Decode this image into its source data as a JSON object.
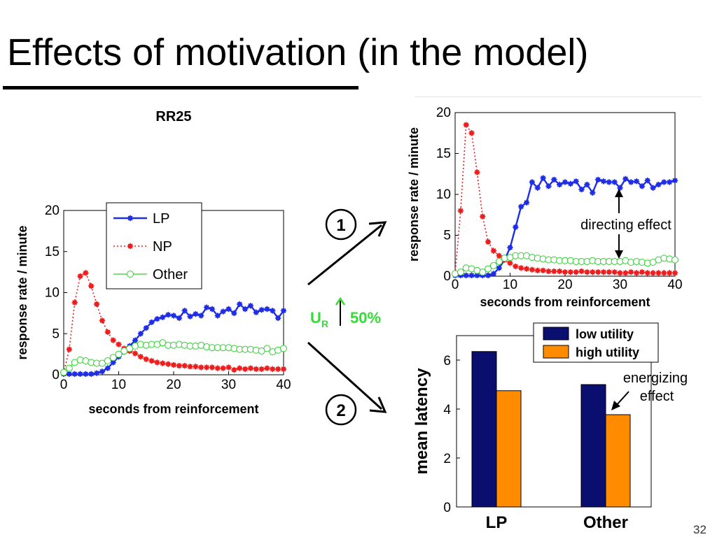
{
  "slide": {
    "title": "Effects of motivation (in the model)",
    "page_number": "32"
  },
  "annotations": {
    "step1": "1",
    "step2": "2",
    "ur_main": "U",
    "ur_sub": "R",
    "ur_change": "50%",
    "directing": "directing effect",
    "energizing_line1": "energizing",
    "energizing_line2": "effect"
  },
  "colors": {
    "lp": "#1f2ee6",
    "np": "#ee1d1d",
    "other": "#2fd12f",
    "low_utility": "#0a0e6e",
    "high_utility": "#ff8c00",
    "ur_green": "#33dd33"
  },
  "chart_data": [
    {
      "type": "line",
      "title": "RR25",
      "xlabel": "seconds from reinforcement",
      "ylabel": "response rate / minute",
      "xlim": [
        0,
        40
      ],
      "ylim": [
        0,
        20
      ],
      "xticks": [
        0,
        10,
        20,
        30,
        40
      ],
      "yticks": [
        0,
        5,
        10,
        15,
        20
      ],
      "legend": "top-center",
      "x": [
        0,
        1,
        2,
        3,
        4,
        5,
        6,
        7,
        8,
        9,
        10,
        11,
        12,
        13,
        14,
        15,
        16,
        17,
        18,
        19,
        20,
        21,
        22,
        23,
        24,
        25,
        26,
        27,
        28,
        29,
        30,
        31,
        32,
        33,
        34,
        35,
        36,
        37,
        38,
        39,
        40
      ],
      "series": [
        {
          "name": "LP",
          "marker": "star",
          "line": "solid",
          "values": [
            0.1,
            0.1,
            0.1,
            0.1,
            0.1,
            0.1,
            0.2,
            0.4,
            0.8,
            1.5,
            2.2,
            2.8,
            3.5,
            4.2,
            5.0,
            5.7,
            6.4,
            6.8,
            7.0,
            7.3,
            7.2,
            6.9,
            7.8,
            7.1,
            7.4,
            7.2,
            8.2,
            8.0,
            7.2,
            7.7,
            8.0,
            7.5,
            8.6,
            8.0,
            8.4,
            7.6,
            7.9,
            8.0,
            7.8,
            6.9,
            7.8
          ]
        },
        {
          "name": "NP",
          "marker": "star",
          "line": "dotted",
          "values": [
            0.2,
            3.1,
            8.8,
            12.0,
            12.4,
            10.8,
            8.6,
            6.6,
            5.2,
            4.2,
            3.7,
            3.2,
            2.9,
            2.6,
            2.2,
            1.9,
            1.7,
            1.5,
            1.4,
            1.3,
            1.2,
            1.1,
            1.1,
            1.0,
            1.0,
            0.9,
            0.9,
            0.9,
            0.8,
            0.8,
            0.9,
            0.6,
            0.8,
            0.7,
            0.8,
            0.7,
            0.7,
            0.8,
            0.7,
            0.7,
            0.7
          ]
        },
        {
          "name": "Other",
          "marker": "circle",
          "line": "solid",
          "values": [
            0.3,
            0.8,
            1.5,
            1.8,
            1.7,
            1.5,
            1.4,
            1.4,
            1.7,
            2.1,
            2.5,
            2.9,
            3.2,
            3.5,
            3.7,
            3.6,
            3.7,
            3.7,
            3.9,
            3.6,
            3.6,
            3.7,
            3.6,
            3.5,
            3.5,
            3.6,
            3.4,
            3.3,
            3.3,
            3.3,
            3.3,
            3.2,
            3.1,
            3.1,
            3.1,
            3.0,
            2.9,
            3.2,
            2.8,
            3.0,
            3.2
          ]
        }
      ]
    },
    {
      "type": "line",
      "title": "",
      "xlabel": "seconds from reinforcement",
      "ylabel": "response rate / minute",
      "xlim": [
        0,
        40
      ],
      "ylim": [
        0,
        20
      ],
      "xticks": [
        0,
        10,
        20,
        30,
        40
      ],
      "yticks": [
        0,
        5,
        10,
        15,
        20
      ],
      "x": [
        0,
        1,
        2,
        3,
        4,
        5,
        6,
        7,
        8,
        9,
        10,
        11,
        12,
        13,
        14,
        15,
        16,
        17,
        18,
        19,
        20,
        21,
        22,
        23,
        24,
        25,
        26,
        27,
        28,
        29,
        30,
        31,
        32,
        33,
        34,
        35,
        36,
        37,
        38,
        39,
        40
      ],
      "series": [
        {
          "name": "LP",
          "marker": "star",
          "line": "solid",
          "values": [
            0.1,
            0.1,
            0.1,
            0.1,
            0.1,
            0.1,
            0.1,
            0.3,
            1.0,
            2.0,
            3.5,
            6.0,
            8.5,
            9.0,
            11.5,
            10.8,
            12.0,
            11.0,
            11.8,
            11.2,
            11.5,
            11.3,
            11.6,
            10.6,
            11.2,
            10.2,
            11.8,
            11.6,
            11.5,
            11.5,
            10.8,
            11.9,
            11.5,
            11.6,
            11.0,
            11.7,
            10.8,
            11.2,
            11.5,
            11.5,
            11.7
          ]
        },
        {
          "name": "NP",
          "marker": "star",
          "line": "dotted",
          "values": [
            0.3,
            8.0,
            18.5,
            17.5,
            12.7,
            7.3,
            4.2,
            3.1,
            2.5,
            2.0,
            1.6,
            1.2,
            1.0,
            0.9,
            0.8,
            0.7,
            0.7,
            0.6,
            0.6,
            0.6,
            0.5,
            0.5,
            0.5,
            0.6,
            0.5,
            0.5,
            0.5,
            0.5,
            0.5,
            0.5,
            0.4,
            0.4,
            0.5,
            0.4,
            0.5,
            0.4,
            0.4,
            0.4,
            0.4,
            0.4,
            0.4
          ]
        },
        {
          "name": "Other",
          "marker": "circle",
          "line": "solid",
          "values": [
            0.3,
            0.5,
            1.0,
            0.9,
            0.7,
            0.5,
            0.9,
            1.3,
            1.8,
            2.2,
            2.3,
            2.5,
            2.5,
            2.5,
            2.3,
            2.2,
            2.1,
            2.0,
            2.0,
            1.9,
            1.9,
            1.9,
            1.8,
            1.8,
            1.8,
            1.9,
            1.8,
            1.8,
            1.8,
            1.8,
            1.8,
            1.9,
            1.7,
            1.8,
            1.7,
            1.6,
            1.7,
            2.0,
            2.2,
            2.1,
            2.0
          ]
        }
      ]
    },
    {
      "type": "bar",
      "ylabel": "mean latency",
      "ylim": [
        0,
        7
      ],
      "yticks": [
        0,
        2,
        4,
        6
      ],
      "categories": [
        "LP",
        "Other"
      ],
      "legend": "top",
      "series": [
        {
          "name": "low utility",
          "values": [
            6.35,
            5.0
          ]
        },
        {
          "name": "high utility",
          "values": [
            4.75,
            3.77
          ]
        }
      ]
    }
  ]
}
